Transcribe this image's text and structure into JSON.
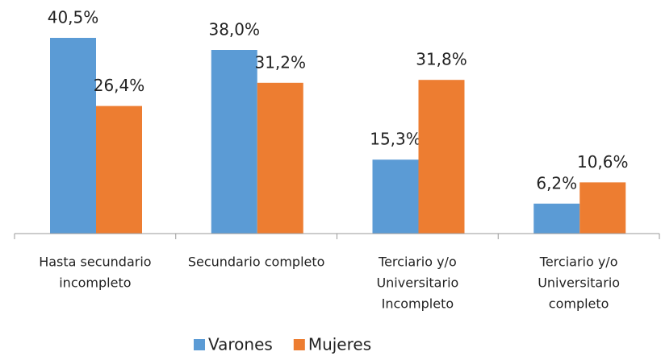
{
  "chart_data": {
    "type": "bar",
    "categories": [
      [
        "Hasta secundario",
        "incompleto"
      ],
      [
        "Secundario completo"
      ],
      [
        "Terciario y/o",
        "Universitario",
        "Incompleto"
      ],
      [
        "Terciario y/o",
        "Universitario",
        "completo"
      ]
    ],
    "series": [
      {
        "name": "Varones",
        "color": "#5b9bd5",
        "values": [
          40.5,
          38.0,
          15.3,
          6.2
        ],
        "value_labels": [
          "40,5%",
          "38,0%",
          "15,3%",
          "6,2%"
        ]
      },
      {
        "name": "Mujeres",
        "color": "#ed7d31",
        "values": [
          26.4,
          31.2,
          31.8,
          10.6
        ],
        "value_labels": [
          "26,4%",
          "31,2%",
          "31,8%",
          "10,6%"
        ]
      }
    ],
    "ylim": [
      0,
      48
    ],
    "legend": "bottom"
  }
}
